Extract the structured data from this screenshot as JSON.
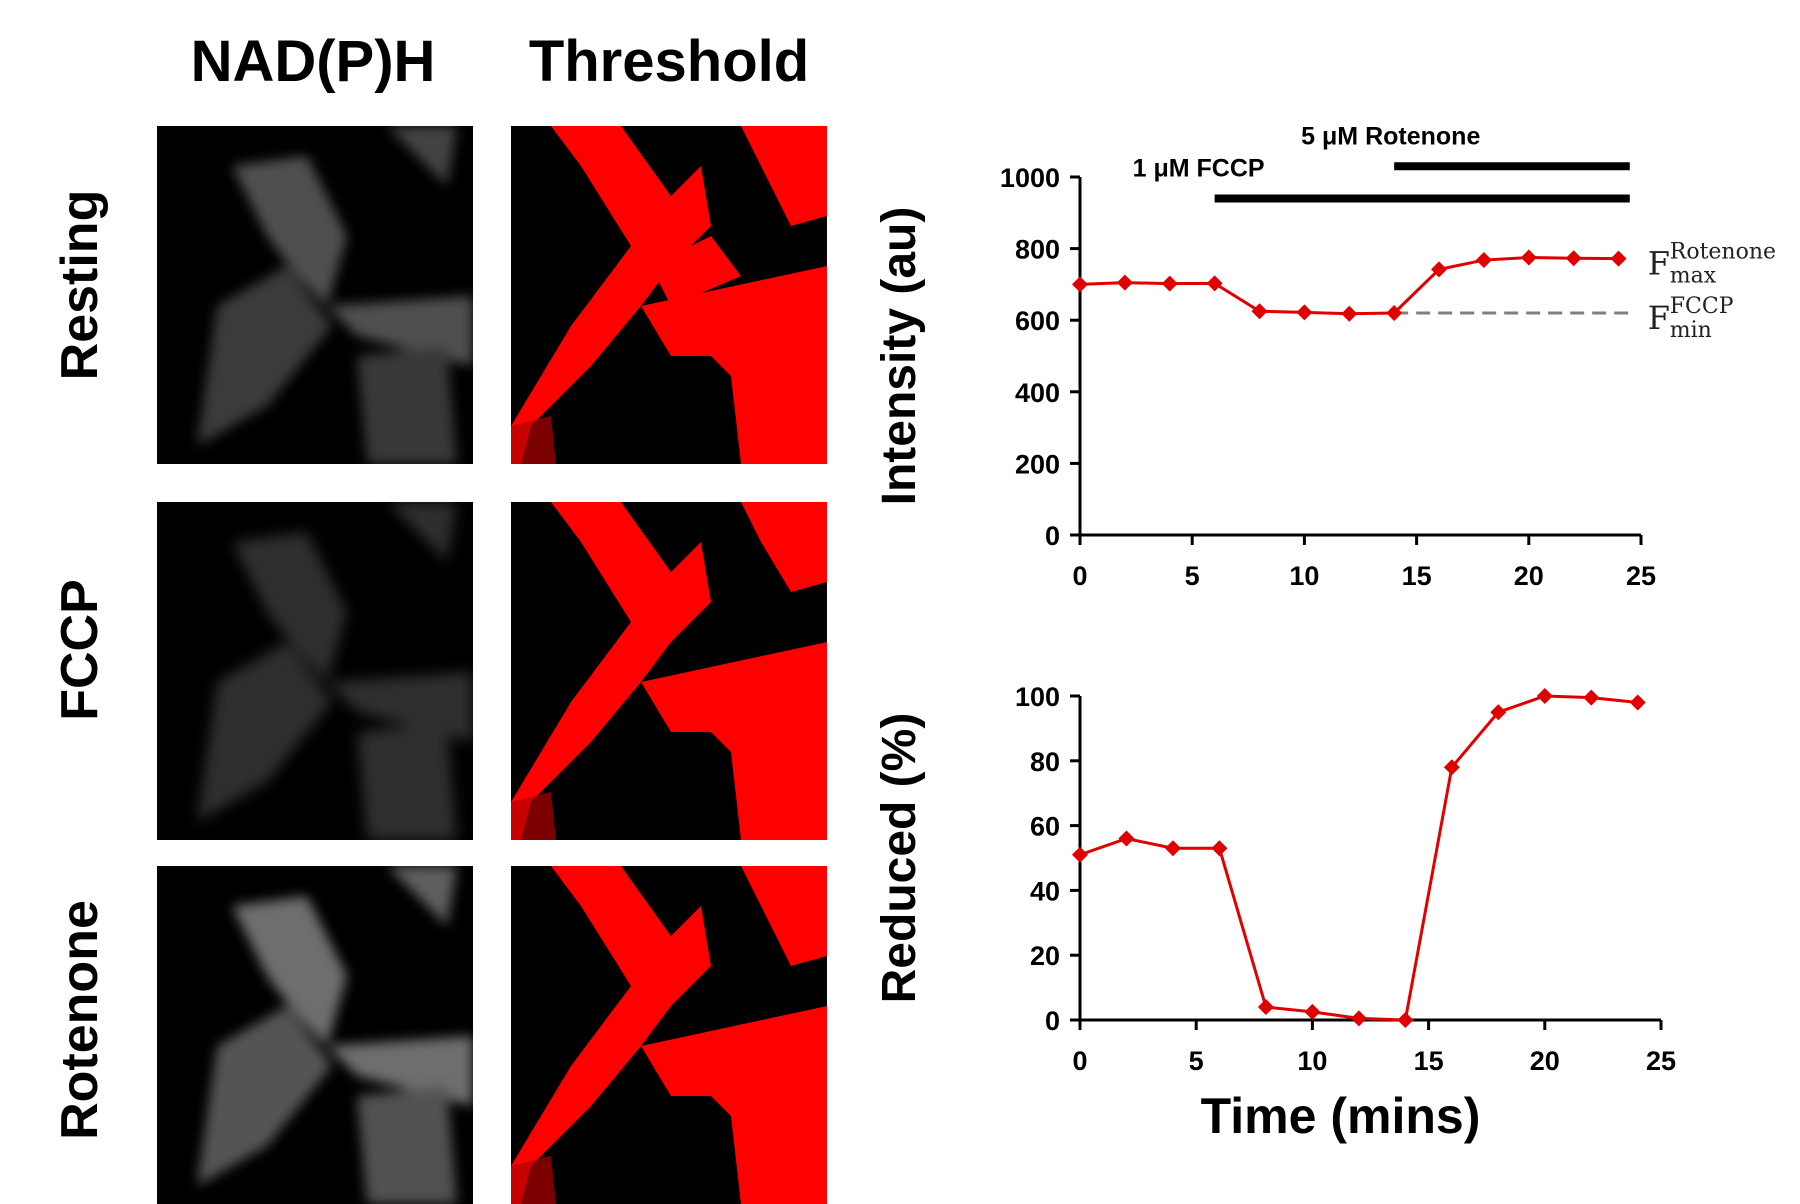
{
  "image_grid": {
    "columns": [
      "NAD(P)H",
      "Threshold"
    ],
    "rows": [
      "Resting",
      "FCCP",
      "Rotenone"
    ]
  },
  "chart_data": [
    {
      "type": "line",
      "ylabel": "Intensity (au)",
      "xlabel": "",
      "xlim": [
        0,
        25
      ],
      "ylim": [
        0,
        1000
      ],
      "xticks": [
        "0",
        "5",
        "10",
        "15",
        "20",
        "25"
      ],
      "yticks": [
        "0",
        "200",
        "400",
        "600",
        "800",
        "1000"
      ],
      "series": [
        {
          "color": "#e00000",
          "x": [
            0,
            2,
            4,
            6,
            8,
            10,
            12,
            14,
            16,
            18,
            20,
            22,
            24
          ],
          "y": [
            700,
            705,
            702,
            703,
            625,
            622,
            618,
            620,
            742,
            768,
            775,
            773,
            772
          ]
        }
      ],
      "treatments": [
        {
          "label": "1 μM FCCP",
          "start": 6,
          "end": 24.5,
          "y": 940
        },
        {
          "label": "5 μM Rotenone",
          "start": 14,
          "end": 24.5,
          "y": 1030
        }
      ],
      "reference_line": {
        "y": 620,
        "start": 14,
        "end": 24.5,
        "color": "#808080",
        "style": "dashed"
      },
      "annotations": [
        {
          "base": "F",
          "sub": "max",
          "sup": "Rotenone",
          "x": 24.5,
          "y": 772
        },
        {
          "base": "F",
          "sub": "min",
          "sup": "FCCP",
          "x": 24.5,
          "y": 620
        }
      ]
    },
    {
      "type": "line",
      "ylabel": "Reduced (%)",
      "xlabel": "Time (mins)",
      "xlim": [
        0,
        25
      ],
      "ylim": [
        0,
        100
      ],
      "xticks": [
        "0",
        "5",
        "10",
        "15",
        "20",
        "25"
      ],
      "yticks": [
        "0",
        "20",
        "40",
        "60",
        "80",
        "100"
      ],
      "series": [
        {
          "color": "#e00000",
          "x": [
            0,
            2,
            4,
            6,
            8,
            10,
            12,
            14,
            16,
            18,
            20,
            22,
            24
          ],
          "y": [
            51,
            56,
            53,
            53,
            4,
            2.5,
            0.5,
            0,
            78,
            95,
            100,
            99.5,
            98
          ]
        }
      ]
    }
  ]
}
